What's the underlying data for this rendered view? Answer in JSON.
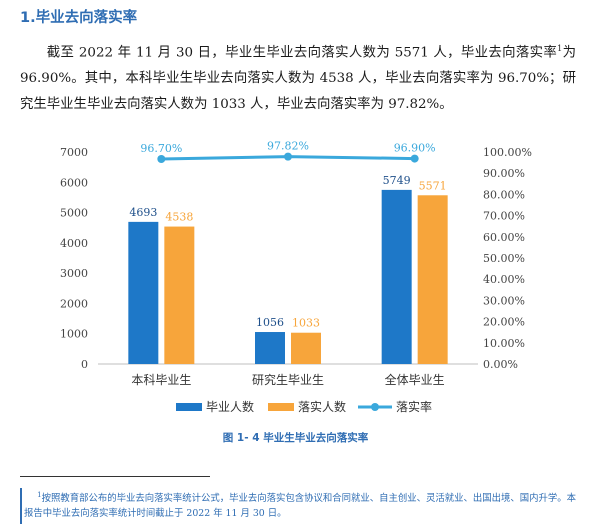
{
  "section": {
    "heading": "1.毕业去向落实率"
  },
  "paragraph": {
    "text_a": "截至 2022 年 11 月 30 日，毕业生毕业去向落实人数为 5571 人，毕业去向落实率",
    "footnote_ref": "1",
    "text_b": "为 96.90%。其中，本科毕业生毕业去向落实人数为 4538 人，毕业去向落实率为 96.70%；研究生毕业生毕业去向落实人数为 1033 人，毕业去向落实率为 97.82%。"
  },
  "chart_data": {
    "type": "bar",
    "categories": [
      "本科毕业生",
      "研究生毕业生",
      "全体毕业生"
    ],
    "series": [
      {
        "name": "毕业人数",
        "kind": "bar",
        "axis": "left",
        "color": "#1e78c8",
        "values": [
          4693,
          1056,
          5749
        ],
        "labels": [
          "4693",
          "1056",
          "5749"
        ]
      },
      {
        "name": "落实人数",
        "kind": "bar",
        "axis": "left",
        "color": "#f7a53b",
        "values": [
          4538,
          1033,
          5571
        ],
        "labels": [
          "4538",
          "1033",
          "5571"
        ]
      },
      {
        "name": "落实率",
        "kind": "line",
        "axis": "right",
        "color": "#3aa8dc",
        "values": [
          96.7,
          97.82,
          96.9
        ],
        "labels": [
          "96.70%",
          "97.82%",
          "96.90%"
        ]
      }
    ],
    "y_left": {
      "range": [
        0,
        7000
      ],
      "ticks": [
        "0",
        "1000",
        "2000",
        "3000",
        "4000",
        "5000",
        "6000",
        "7000"
      ]
    },
    "y_right": {
      "range": [
        0,
        100
      ],
      "ticks": [
        "0.00%",
        "10.00%",
        "20.00%",
        "30.00%",
        "40.00%",
        "50.00%",
        "60.00%",
        "70.00%",
        "80.00%",
        "90.00%",
        "100.00%"
      ]
    },
    "legend_position": "bottom",
    "grid": false,
    "label_colors": {
      "blue": "#1e4f8a",
      "orange": "#f7a53b",
      "line": "#3aa8dc",
      "axis": "#444444"
    }
  },
  "figure": {
    "caption": "图 1- 4  毕业生毕业去向落实率"
  },
  "footnote": {
    "marker": "1",
    "text": "按照教育部公布的毕业去向落实率统计公式，毕业去向落实包含协议和合同就业、自主创业、灵活就业、出国出境、国内升学。本报告中毕业去向落实率统计时间截止于 2022 年 11 月 30 日。"
  }
}
